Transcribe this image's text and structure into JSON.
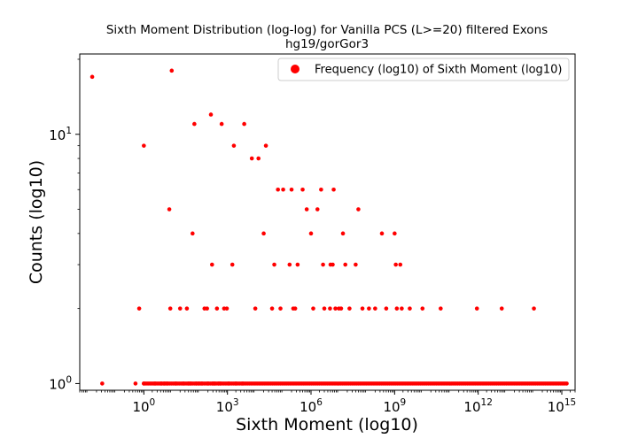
{
  "chart_data": {
    "type": "scatter",
    "title": "Sixth Moment Distribution (log-log) for Vanilla PCS (L>=20) filtered Exons",
    "subtitle": "hg19/gorGor3",
    "xlabel": "Sixth Moment (log10)",
    "ylabel": "Counts (log10)",
    "xscale": "log",
    "yscale": "log",
    "xlim": [
      0.005,
      3000000000000000.0
    ],
    "ylim": [
      0.94,
      21
    ],
    "grid": false,
    "legend_position": "top-right",
    "color": "#ff0000",
    "x_ticks": [
      {
        "base": "10",
        "exp": "0",
        "value": 1
      },
      {
        "base": "10",
        "exp": "3",
        "value": 1000
      },
      {
        "base": "10",
        "exp": "6",
        "value": 1000000
      },
      {
        "base": "10",
        "exp": "9",
        "value": 1000000000
      },
      {
        "base": "10",
        "exp": "12",
        "value": 1000000000000
      },
      {
        "base": "10",
        "exp": "15",
        "value": 1000000000000000
      }
    ],
    "y_ticks": [
      {
        "base": "10",
        "exp": "0",
        "value": 1
      },
      {
        "base": "10",
        "exp": "1",
        "value": 10
      }
    ],
    "series": [
      {
        "name": "Frequency (log10) of Sixth Moment (log10)",
        "points": [
          [
            0.014,
            17
          ],
          [
            0.032,
            1
          ],
          [
            0.5,
            1
          ],
          [
            0.68,
            2
          ],
          [
            1.0,
            9
          ],
          [
            1.0,
            1
          ],
          [
            2.5,
            1
          ],
          [
            4.2,
            1
          ],
          [
            5.5,
            1
          ],
          [
            6.8,
            1
          ],
          [
            8.2,
            5
          ],
          [
            10.0,
            18
          ],
          [
            8.9,
            2
          ],
          [
            14,
            1
          ],
          [
            20,
            2
          ],
          [
            26,
            1
          ],
          [
            35,
            2
          ],
          [
            40,
            1
          ],
          [
            48,
            1
          ],
          [
            56,
            4
          ],
          [
            65,
            11
          ],
          [
            75,
            1
          ],
          [
            95,
            1
          ],
          [
            120,
            1
          ],
          [
            150,
            2
          ],
          [
            185,
            2
          ],
          [
            200,
            1
          ],
          [
            255,
            12
          ],
          [
            280,
            3
          ],
          [
            300,
            1
          ],
          [
            350,
            1
          ],
          [
            420,
            2
          ],
          [
            480,
            1
          ],
          [
            550,
            1
          ],
          [
            620,
            11
          ],
          [
            760,
            2
          ],
          [
            950,
            2
          ],
          [
            1100,
            1
          ],
          [
            1500,
            3
          ],
          [
            1700,
            9
          ],
          [
            2000,
            1
          ],
          [
            3500,
            1
          ],
          [
            4000,
            11
          ],
          [
            7500,
            8
          ],
          [
            10000,
            2
          ],
          [
            13000,
            8
          ],
          [
            20000,
            4
          ],
          [
            24000,
            9
          ],
          [
            40000,
            2
          ],
          [
            48000,
            3
          ],
          [
            65000,
            6
          ],
          [
            80000,
            2
          ],
          [
            100000,
            6
          ],
          [
            170000,
            3
          ],
          [
            200000,
            6
          ],
          [
            230000,
            2
          ],
          [
            270000,
            2
          ],
          [
            330000,
            3
          ],
          [
            500000,
            6
          ],
          [
            700000,
            5
          ],
          [
            1000000,
            4
          ],
          [
            1200000,
            2
          ],
          [
            1700000,
            5
          ],
          [
            2300000,
            6
          ],
          [
            2700000,
            3
          ],
          [
            3000000,
            2
          ],
          [
            4800000,
            2
          ],
          [
            5000000,
            3
          ],
          [
            6000000,
            3
          ],
          [
            6500000,
            6
          ],
          [
            7500000,
            2
          ],
          [
            10000000,
            2
          ],
          [
            12000000,
            2
          ],
          [
            14000000,
            4
          ],
          [
            17000000,
            3
          ],
          [
            24000000,
            2
          ],
          [
            40000000,
            3
          ],
          [
            50000000,
            5
          ],
          [
            70000000,
            2
          ],
          [
            120000000,
            2
          ],
          [
            200000000,
            2
          ],
          [
            350000000,
            4
          ],
          [
            500000000,
            2
          ],
          [
            1000000000,
            4
          ],
          [
            1100000000,
            3
          ],
          [
            1200000000,
            2
          ],
          [
            1600000000,
            3
          ],
          [
            1800000000,
            2
          ],
          [
            3500000000,
            2
          ],
          [
            10000000000,
            2
          ],
          [
            45000000000,
            2
          ],
          [
            900000000000,
            2
          ],
          [
            7000000000000,
            2
          ],
          [
            100000000000000,
            2
          ]
        ],
        "count1_xrange": [
          1.0,
          1500000000000000.0
        ]
      }
    ]
  }
}
